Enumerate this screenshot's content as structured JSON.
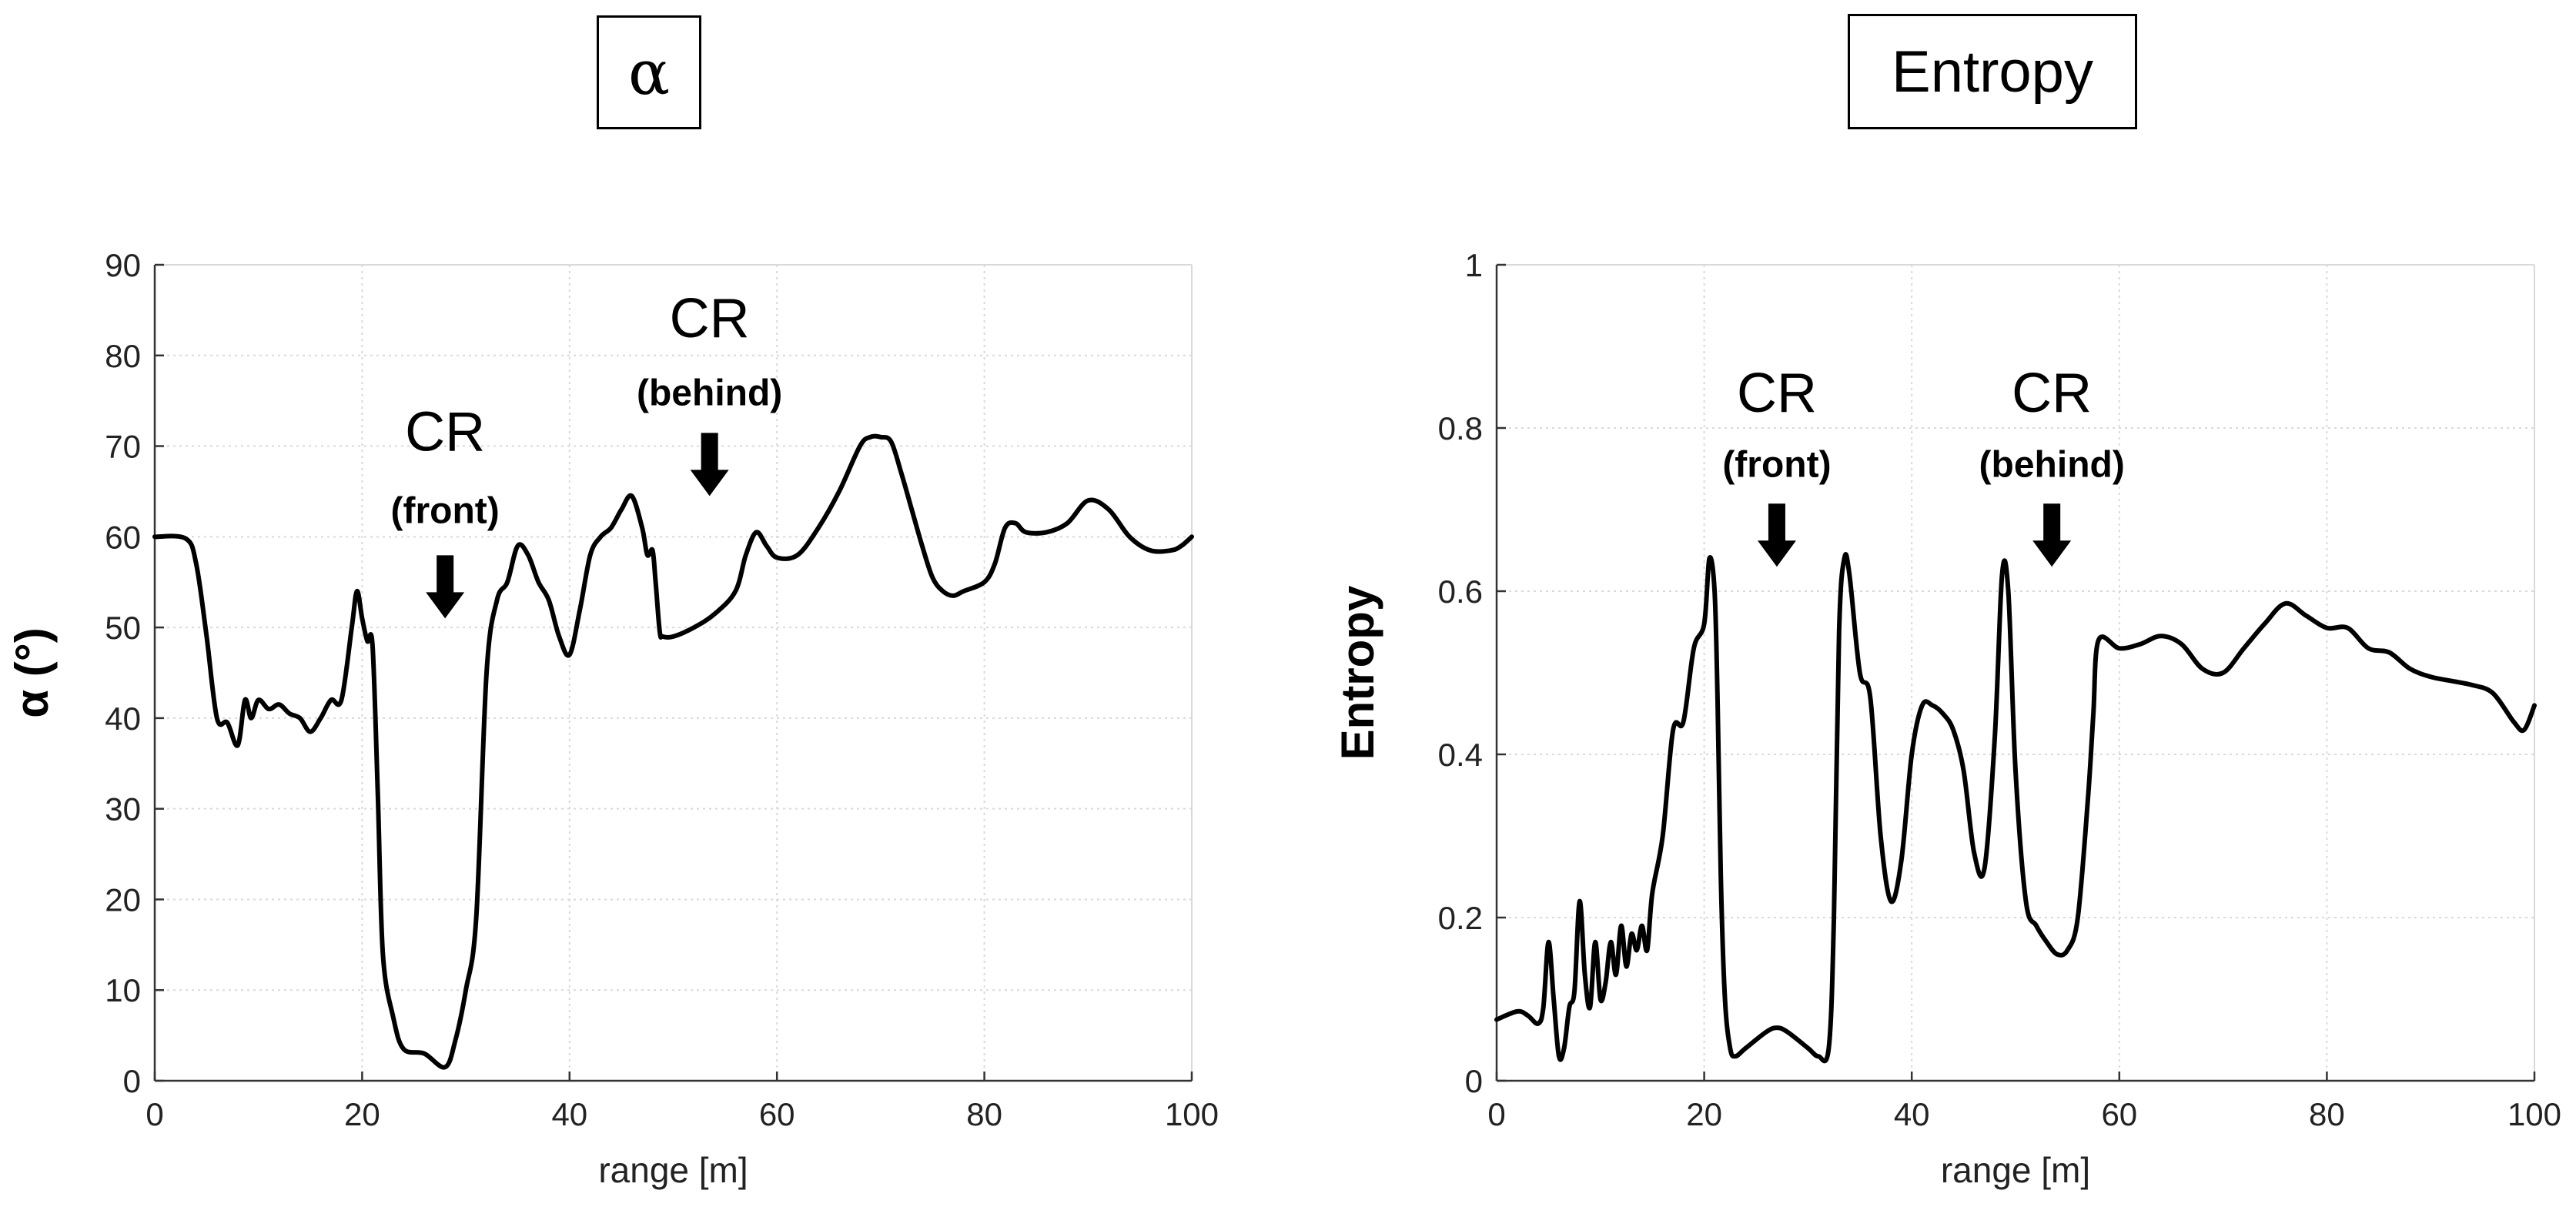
{
  "chart_data": [
    {
      "type": "line",
      "title": "α",
      "xlabel": "range [m]",
      "ylabel": "α (°)",
      "xlim": [
        0,
        100
      ],
      "ylim": [
        0,
        90
      ],
      "xticks": [
        "0",
        "20",
        "40",
        "60",
        "80",
        "100"
      ],
      "yticks": [
        "0",
        "10",
        "20",
        "30",
        "40",
        "50",
        "60",
        "70",
        "80",
        "90"
      ],
      "grid": true,
      "annotations": [
        {
          "label": "CR",
          "sub": "(front)",
          "x": 28,
          "y": 51,
          "label_y": 69.5,
          "sub_y": 61.5
        },
        {
          "label": "CR",
          "sub": "(behind)",
          "x": 53.5,
          "y": 64.5,
          "label_y": 82,
          "sub_y": 74.5
        }
      ],
      "series": [
        {
          "name": "alpha",
          "x": [
            0,
            3,
            4,
            5,
            6,
            7,
            8,
            8.7,
            9.3,
            10,
            11,
            12,
            13,
            14,
            15,
            16,
            17,
            18,
            19,
            19.5,
            20,
            20.5,
            21,
            21.5,
            22,
            23,
            24,
            26,
            28,
            29,
            30,
            31,
            32,
            33,
            34,
            35,
            36,
            37,
            38,
            39,
            40,
            41,
            42,
            43,
            44,
            45,
            46,
            47,
            47.5,
            48,
            48.3,
            48.7,
            49,
            50,
            52,
            54,
            56,
            57,
            58,
            59,
            60,
            62,
            64,
            66,
            68,
            69,
            70,
            71,
            72,
            73,
            74,
            75,
            76,
            77,
            78,
            80,
            81,
            82,
            83,
            84,
            86,
            88,
            90,
            92,
            94,
            96,
            98,
            99,
            100
          ],
          "y": [
            60,
            59.8,
            57,
            49,
            40,
            39.5,
            37,
            42,
            40,
            42,
            41,
            41.5,
            40.5,
            40,
            38.5,
            40,
            42,
            42,
            50,
            54,
            51,
            48.5,
            48,
            32,
            14,
            7,
            3.5,
            3,
            1.5,
            4.5,
            10,
            18,
            45,
            53,
            55,
            59,
            58,
            55,
            53,
            49,
            47,
            52,
            58,
            60,
            61,
            63,
            64.5,
            61,
            58,
            58.5,
            55,
            49.5,
            49,
            49,
            50,
            51.5,
            54,
            58,
            60.5,
            59,
            57.7,
            58,
            61,
            65,
            70,
            71,
            71,
            70.5,
            67,
            63,
            59,
            55.5,
            54,
            53.5,
            54,
            55,
            57,
            61,
            61.5,
            60.5,
            60.5,
            61.5,
            64,
            63,
            60,
            58.5,
            58.5,
            59,
            60
          ]
        }
      ]
    },
    {
      "type": "line",
      "title": "Entropy",
      "xlabel": "range [m]",
      "ylabel": "Entropy",
      "xlim": [
        0,
        100
      ],
      "ylim": [
        0,
        1
      ],
      "xticks": [
        "0",
        "20",
        "40",
        "60",
        "80",
        "100"
      ],
      "yticks": [
        "0",
        "0.2",
        "0.4",
        "0.6",
        "0.8",
        "1"
      ],
      "grid": true,
      "annotations": [
        {
          "label": "CR",
          "sub": "(front)",
          "x": 27,
          "y": 0.63,
          "label_y": 0.82,
          "sub_y": 0.74
        },
        {
          "label": "CR",
          "sub": "(behind)",
          "x": 53.5,
          "y": 0.63,
          "label_y": 0.82,
          "sub_y": 0.74
        }
      ],
      "series": [
        {
          "name": "entropy",
          "x": [
            0,
            2,
            3,
            4,
            4.5,
            5,
            5.5,
            6,
            6.5,
            7,
            7.5,
            8,
            8.5,
            9,
            9.5,
            10,
            10.5,
            11,
            11.5,
            12,
            12.5,
            13,
            13.5,
            14,
            14.5,
            15,
            16,
            17,
            18,
            19,
            20,
            20.5,
            21,
            21.3,
            21.6,
            22,
            22.5,
            23,
            24,
            26,
            27,
            28,
            30,
            31,
            32,
            32.5,
            33,
            33.5,
            34,
            35,
            36,
            37,
            38,
            39,
            40,
            41,
            42,
            43,
            44,
            45,
            46,
            47,
            48,
            48.7,
            49.3,
            50,
            51,
            52,
            53,
            54,
            55,
            56,
            57,
            57.5,
            58,
            60,
            62,
            64,
            66,
            68,
            70,
            72,
            74,
            76,
            78,
            80,
            82,
            84,
            86,
            88,
            90,
            92,
            94,
            96,
            98,
            99,
            100
          ],
          "y": [
            0.075,
            0.085,
            0.08,
            0.07,
            0.09,
            0.17,
            0.1,
            0.03,
            0.04,
            0.09,
            0.11,
            0.22,
            0.13,
            0.09,
            0.17,
            0.1,
            0.12,
            0.17,
            0.13,
            0.19,
            0.14,
            0.18,
            0.16,
            0.19,
            0.16,
            0.23,
            0.3,
            0.43,
            0.44,
            0.53,
            0.56,
            0.64,
            0.6,
            0.46,
            0.25,
            0.1,
            0.04,
            0.03,
            0.04,
            0.06,
            0.065,
            0.06,
            0.04,
            0.03,
            0.04,
            0.2,
            0.55,
            0.64,
            0.62,
            0.5,
            0.47,
            0.3,
            0.22,
            0.27,
            0.4,
            0.46,
            0.46,
            0.45,
            0.43,
            0.38,
            0.28,
            0.26,
            0.42,
            0.62,
            0.6,
            0.38,
            0.22,
            0.19,
            0.17,
            0.155,
            0.16,
            0.2,
            0.35,
            0.45,
            0.54,
            0.53,
            0.535,
            0.545,
            0.535,
            0.505,
            0.5,
            0.53,
            0.56,
            0.585,
            0.57,
            0.555,
            0.555,
            0.53,
            0.525,
            0.505,
            0.495,
            0.49,
            0.485,
            0.475,
            0.44,
            0.43,
            0.46
          ]
        }
      ]
    }
  ]
}
